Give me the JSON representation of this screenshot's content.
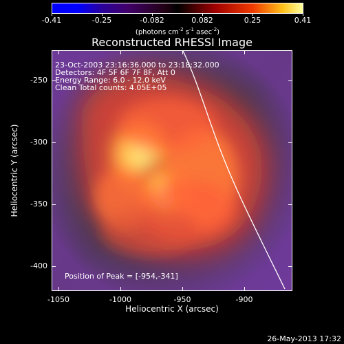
{
  "colorbar": {
    "tick_labels": [
      "-0.41",
      "-0.25",
      "-0.082",
      "0.082",
      "0.25",
      "0.41"
    ],
    "units": {
      "prefix": "(photons cm",
      "cm_exp": "-2",
      "s_text": " s",
      "s_exp": "-1",
      "asec_text": " asec",
      "asec_exp": "-2",
      "suffix": ")"
    }
  },
  "title": "Reconstructed RHESSI Image",
  "info": {
    "line1": "23-Oct-2003 23:16:36.000 to 23:18:32.000",
    "line2": "Detectors: 4F 5F 6F 7F 8F, Att 0",
    "line3": "Energy Range: 6.0 - 12.0 keV",
    "line4": "Clean    Total counts: 4.05E+05"
  },
  "peak_text": "Position of Peak = [-954,-341]",
  "axes": {
    "x_ticks": [
      "-1050",
      "-1000",
      "-950",
      "-900"
    ],
    "y_ticks": [
      "-250",
      "-300",
      "-350",
      "-400"
    ],
    "x_title": "Heliocentric X (arcsec)",
    "y_title": "Heliocentric Y (arcsec)"
  },
  "timestamp": "26-May-2013 17:32",
  "image_data": {
    "x_range": [
      -1059,
      -915
    ],
    "y_range": [
      -421,
      -233
    ],
    "peak_x": -954,
    "peak_y": -341,
    "colormap": "blue-black-red-yellow-white"
  }
}
